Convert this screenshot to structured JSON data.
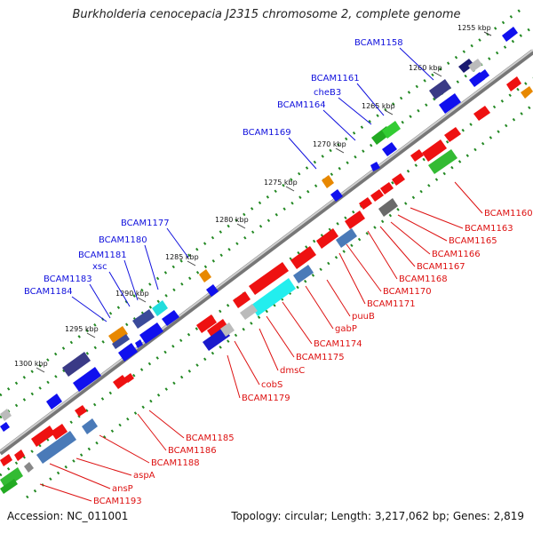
{
  "title": "Burkholderia cenocepacia J2315 chromosome 2, complete genome",
  "accession": "Accession: NC_011001",
  "summary": "Topology: circular; Length: 3,217,062 bp; Genes: 2,819",
  "ticks": [
    "1255 kbp",
    "1260 kbp",
    "1265 kbp",
    "1270 kbp",
    "1275 kbp",
    "1280 kbp",
    "1285 kbp",
    "1290 kbp",
    "1295 kbp",
    "1300 kbp"
  ],
  "forward_gene_labels": [
    "BCAM1158",
    "BCAM1161",
    "cheB3",
    "BCAM1164",
    "BCAM1169",
    "BCAM1177",
    "BCAM1180",
    "BCAM1181",
    "xsc",
    "BCAM1183",
    "BCAM1184"
  ],
  "reverse_gene_labels": [
    "BCAM1160",
    "BCAM1163",
    "BCAM1165",
    "BCAM1166",
    "BCAM1167",
    "BCAM1168",
    "BCAM1170",
    "BCAM1171",
    "puuB",
    "gabP",
    "BCAM1174",
    "BCAM1175",
    "dmsC",
    "cobS",
    "BCAM1179",
    "BCAM1185",
    "BCAM1186",
    "BCAM1188",
    "aspA",
    "ansP",
    "BCAM1193"
  ],
  "colors": {
    "forward_label": "#1111dd",
    "reverse_label": "#dd1111",
    "forward_arrow": "#1010ee",
    "reverse_arrow": "#ee1111",
    "dots": "#228822",
    "backbone": "#888888"
  }
}
